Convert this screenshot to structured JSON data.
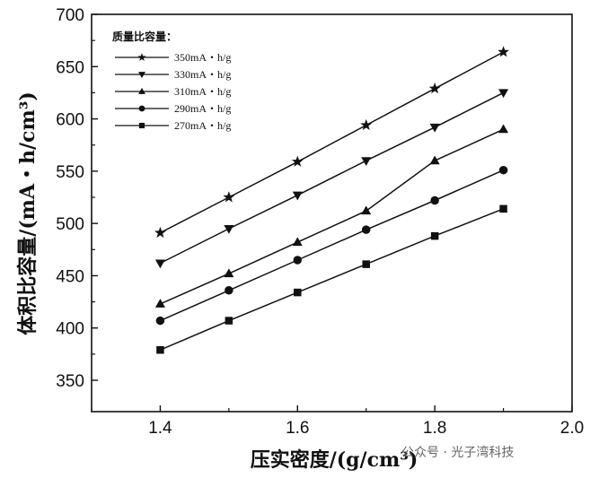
{
  "chart_data": {
    "type": "line",
    "xlabel": "压实密度/(g/cm³)",
    "ylabel": "体积比容量/(mA・h/cm³)",
    "xlim": [
      1.3,
      2.0
    ],
    "ylim": [
      320,
      700
    ],
    "xticks": [
      "1.4",
      "1.6",
      "1.8",
      "2.0"
    ],
    "yticks": [
      "350",
      "400",
      "450",
      "500",
      "550",
      "600",
      "650",
      "700"
    ],
    "legend_title": "质量比容量：",
    "legend_position": "top-left",
    "x": [
      1.4,
      1.5,
      1.6,
      1.7,
      1.8,
      1.9
    ],
    "series": [
      {
        "name": "350mA・h/g",
        "marker": "star",
        "values": [
          491,
          525,
          559,
          594,
          629,
          664
        ]
      },
      {
        "name": "330mA・h/g",
        "marker": "triangle-down",
        "values": [
          462,
          495,
          527,
          560,
          592,
          625
        ]
      },
      {
        "name": "310mA・h/g",
        "marker": "triangle-up",
        "values": [
          423,
          452,
          482,
          512,
          560,
          590
        ]
      },
      {
        "name": "290mA・h/g",
        "marker": "circle",
        "values": [
          407,
          436,
          465,
          494,
          522,
          551
        ]
      },
      {
        "name": "270mA・h/g",
        "marker": "square",
        "values": [
          379,
          407,
          434,
          461,
          488,
          514
        ]
      }
    ]
  },
  "watermark": "公众号 · 光子湾科技",
  "colors": {
    "ink": "#111111"
  }
}
